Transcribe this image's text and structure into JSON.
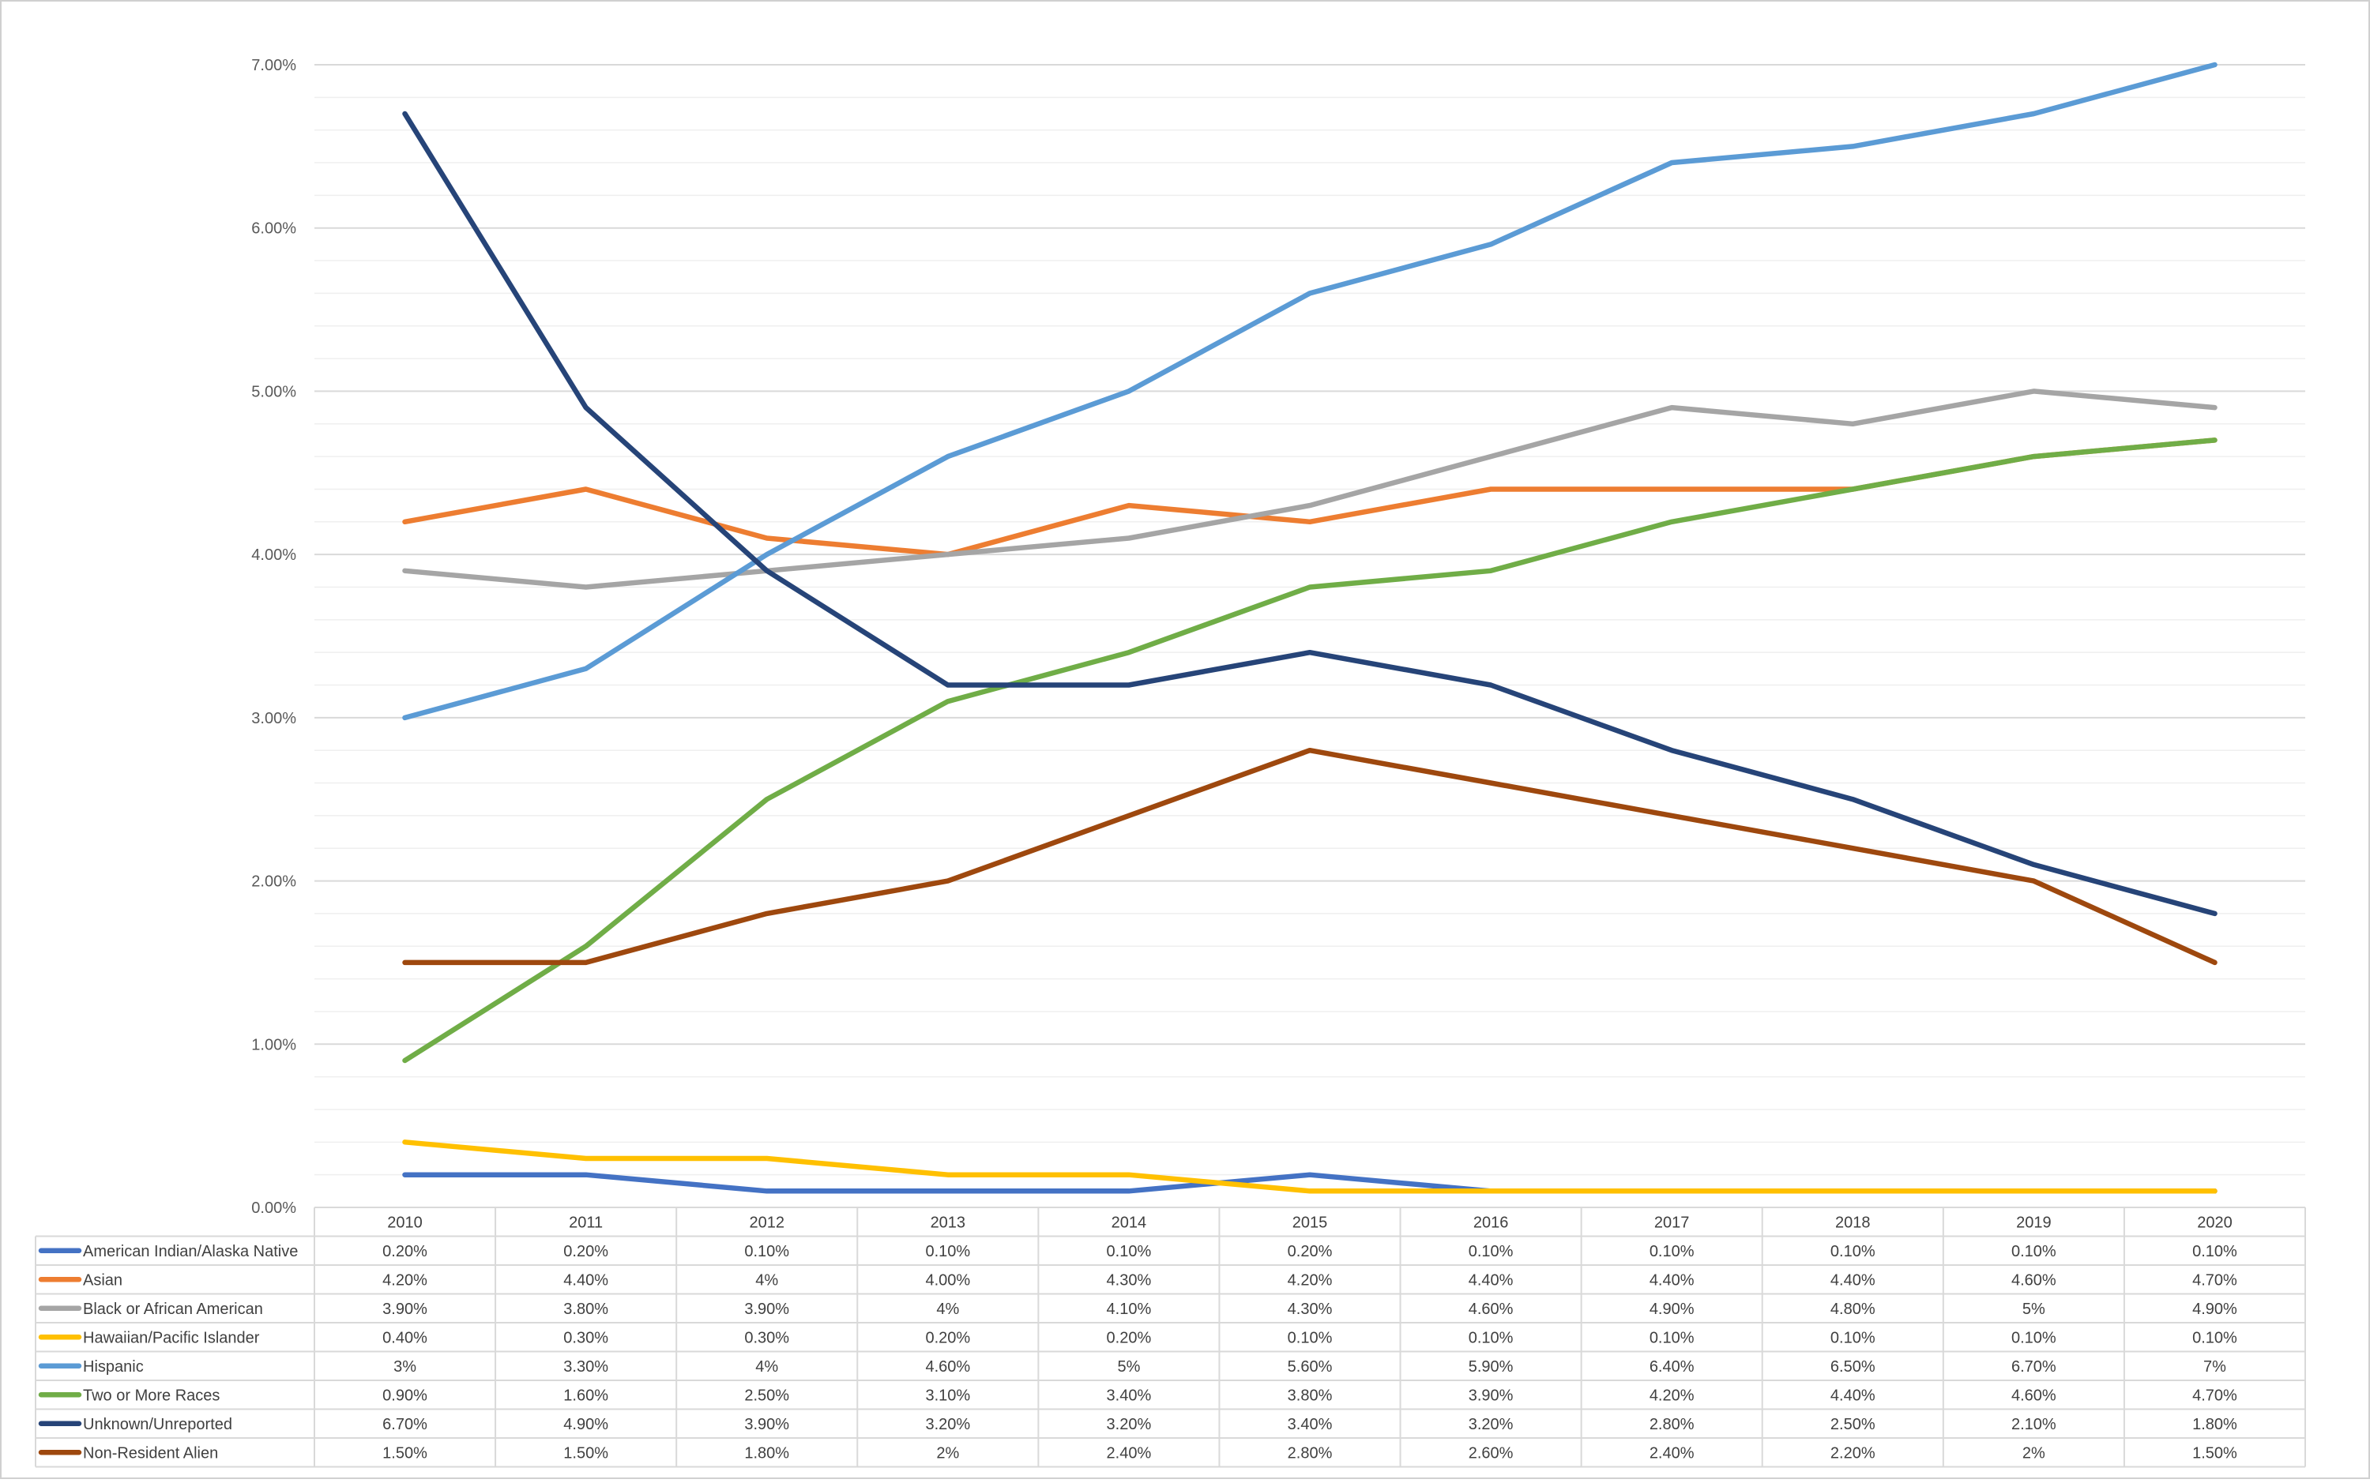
{
  "chart_data": {
    "type": "line",
    "title": "",
    "xlabel": "",
    "ylabel": "",
    "ylim": [
      0,
      0.07
    ],
    "yticks": [
      "0.00%",
      "1.00%",
      "2.00%",
      "3.00%",
      "4.00%",
      "5.00%",
      "6.00%",
      "7.00%"
    ],
    "grid": true,
    "minor_grid": true,
    "legend": "data-table-below",
    "categories": [
      "2010",
      "2011",
      "2012",
      "2013",
      "2014",
      "2015",
      "2016",
      "2017",
      "2018",
      "2019",
      "2020"
    ],
    "series": [
      {
        "name": "American Indian/Alaska Native",
        "color": "#4472C4",
        "values": [
          0.002,
          0.002,
          0.001,
          0.001,
          0.001,
          0.002,
          0.001,
          0.001,
          0.001,
          0.001,
          0.001
        ],
        "labels": [
          "0.20%",
          "0.20%",
          "0.10%",
          "0.10%",
          "0.10%",
          "0.20%",
          "0.10%",
          "0.10%",
          "0.10%",
          "0.10%",
          "0.10%"
        ]
      },
      {
        "name": "Asian",
        "color": "#ED7D31",
        "values": [
          0.042,
          0.044,
          0.041,
          0.04,
          0.043,
          0.042,
          0.044,
          0.044,
          0.044,
          0.046,
          0.047
        ],
        "labels": [
          "4.20%",
          "4.40%",
          "4%",
          "4.00%",
          "4.30%",
          "4.20%",
          "4.40%",
          "4.40%",
          "4.40%",
          "4.60%",
          "4.70%"
        ]
      },
      {
        "name": "Black or African American",
        "color": "#A5A5A5",
        "values": [
          0.039,
          0.038,
          0.039,
          0.04,
          0.041,
          0.043,
          0.046,
          0.049,
          0.048,
          0.05,
          0.049
        ],
        "labels": [
          "3.90%",
          "3.80%",
          "3.90%",
          "4%",
          "4.10%",
          "4.30%",
          "4.60%",
          "4.90%",
          "4.80%",
          "5%",
          "4.90%"
        ]
      },
      {
        "name": "Hawaiian/Pacific Islander",
        "color": "#FFC000",
        "values": [
          0.004,
          0.003,
          0.003,
          0.002,
          0.002,
          0.001,
          0.001,
          0.001,
          0.001,
          0.001,
          0.001
        ],
        "labels": [
          "0.40%",
          "0.30%",
          "0.30%",
          "0.20%",
          "0.20%",
          "0.10%",
          "0.10%",
          "0.10%",
          "0.10%",
          "0.10%",
          "0.10%"
        ]
      },
      {
        "name": "Hispanic",
        "color": "#5B9BD5",
        "values": [
          0.03,
          0.033,
          0.04,
          0.046,
          0.05,
          0.056,
          0.059,
          0.064,
          0.065,
          0.067,
          0.07
        ],
        "labels": [
          "3%",
          "3.30%",
          "4%",
          "4.60%",
          "5%",
          "5.60%",
          "5.90%",
          "6.40%",
          "6.50%",
          "6.70%",
          "7%"
        ]
      },
      {
        "name": "Two or More Races",
        "color": "#70AD47",
        "values": [
          0.009,
          0.016,
          0.025,
          0.031,
          0.034,
          0.038,
          0.039,
          0.042,
          0.044,
          0.046,
          0.047
        ],
        "labels": [
          "0.90%",
          "1.60%",
          "2.50%",
          "3.10%",
          "3.40%",
          "3.80%",
          "3.90%",
          "4.20%",
          "4.40%",
          "4.60%",
          "4.70%"
        ]
      },
      {
        "name": "Unknown/Unreported",
        "color": "#264478",
        "values": [
          0.067,
          0.049,
          0.039,
          0.032,
          0.032,
          0.034,
          0.032,
          0.028,
          0.025,
          0.021,
          0.018
        ],
        "labels": [
          "6.70%",
          "4.90%",
          "3.90%",
          "3.20%",
          "3.20%",
          "3.40%",
          "3.20%",
          "2.80%",
          "2.50%",
          "2.10%",
          "1.80%"
        ]
      },
      {
        "name": "Non-Resident Alien",
        "color": "#9E480E",
        "values": [
          0.015,
          0.015,
          0.018,
          0.02,
          0.024,
          0.028,
          0.026,
          0.024,
          0.022,
          0.02,
          0.015
        ],
        "labels": [
          "1.50%",
          "1.50%",
          "1.80%",
          "2%",
          "2.40%",
          "2.80%",
          "2.60%",
          "2.40%",
          "2.20%",
          "2%",
          "1.50%"
        ]
      }
    ]
  }
}
